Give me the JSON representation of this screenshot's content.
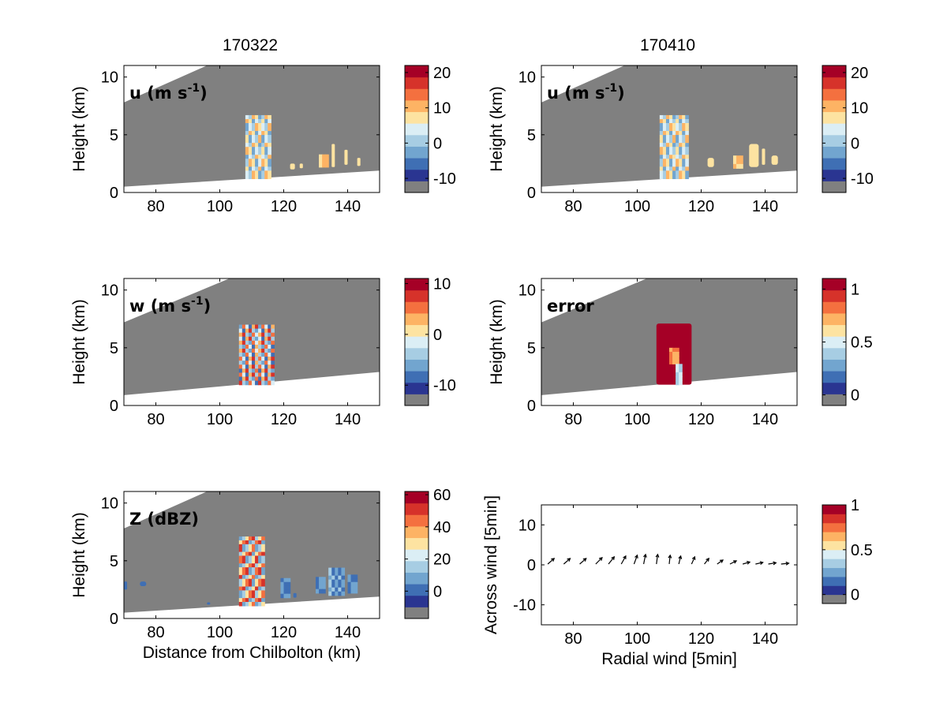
{
  "figure": {
    "column_titles": [
      "170322",
      "170410"
    ],
    "palette": [
      "#808080",
      "#2a3591",
      "#3f6fb4",
      "#72a5cf",
      "#a7cde3",
      "#dbeef5",
      "#fde3a1",
      "#fdb364",
      "#f4703f",
      "#d6322a",
      "#a50026"
    ]
  },
  "chart_data": [
    {
      "id": "u1",
      "type": "heatmap",
      "panel_label": "u (m s",
      "panel_label_sup": "-1",
      "panel_label_end": ")",
      "ylabel": "Height (km)",
      "xlabel": "",
      "xlim": [
        70,
        150
      ],
      "ylim": [
        0,
        11
      ],
      "xticks": [
        "80",
        "100",
        "120",
        "140"
      ],
      "yticks": [
        "0",
        "5",
        "10"
      ],
      "colorbar": {
        "range": [
          -14,
          22
        ],
        "ticks": [
          "20",
          "10",
          "0",
          "-10"
        ],
        "tick_values": [
          20,
          10,
          0,
          -10
        ]
      },
      "beam": {
        "lower": [
          [
            70,
            0.5
          ],
          [
            150,
            1.9
          ]
        ],
        "upper": [
          [
            70,
            7.8
          ],
          [
            96,
            11
          ]
        ]
      },
      "features": [
        {
          "x": [
            108,
            116
          ],
          "y": [
            1.2,
            6.7
          ],
          "colors": [
            "#dbeef5",
            "#a7cde3",
            "#fdb364",
            "#fde3a1",
            "#72a5cf"
          ]
        },
        {
          "x": [
            122,
            123.5
          ],
          "y": [
            2.0,
            2.5
          ],
          "colors": [
            "#fde3a1"
          ]
        },
        {
          "x": [
            125,
            126
          ],
          "y": [
            2.1,
            2.5
          ],
          "colors": [
            "#fde3a1"
          ]
        },
        {
          "x": [
            131,
            134
          ],
          "y": [
            2.2,
            3.3
          ],
          "colors": [
            "#fdb364",
            "#fde3a1"
          ]
        },
        {
          "x": [
            135,
            136
          ],
          "y": [
            2.2,
            4.2
          ],
          "colors": [
            "#fde3a1"
          ]
        },
        {
          "x": [
            139,
            140
          ],
          "y": [
            2.4,
            3.7
          ],
          "colors": [
            "#fde3a1"
          ]
        },
        {
          "x": [
            143,
            144
          ],
          "y": [
            2.3,
            3.0
          ],
          "colors": [
            "#fde3a1"
          ]
        }
      ]
    },
    {
      "id": "u2",
      "type": "heatmap",
      "panel_label": "u (m s",
      "panel_label_sup": "-1",
      "panel_label_end": ")",
      "ylabel": "Height (km)",
      "xlabel": "",
      "xlim": [
        70,
        150
      ],
      "ylim": [
        0,
        11
      ],
      "xticks": [
        "80",
        "100",
        "120",
        "140"
      ],
      "yticks": [
        "0",
        "5",
        "10"
      ],
      "colorbar": {
        "range": [
          -14,
          22
        ],
        "ticks": [
          "20",
          "10",
          "0",
          "-10"
        ],
        "tick_values": [
          20,
          10,
          0,
          -10
        ]
      },
      "beam": {
        "lower": [
          [
            70,
            0.5
          ],
          [
            150,
            1.9
          ]
        ],
        "upper": [
          [
            70,
            7.8
          ],
          [
            96,
            11
          ]
        ]
      },
      "features": [
        {
          "x": [
            107,
            116
          ],
          "y": [
            1.2,
            6.7
          ],
          "colors": [
            "#dbeef5",
            "#a7cde3",
            "#fdb364",
            "#fde3a1",
            "#72a5cf"
          ]
        },
        {
          "x": [
            122,
            124
          ],
          "y": [
            2.2,
            3.0
          ],
          "colors": [
            "#fde3a1"
          ]
        },
        {
          "x": [
            130,
            133
          ],
          "y": [
            2.1,
            3.2
          ],
          "colors": [
            "#fdb364",
            "#fde3a1"
          ]
        },
        {
          "x": [
            135,
            138
          ],
          "y": [
            2.2,
            4.2
          ],
          "colors": [
            "#fde3a1"
          ]
        },
        {
          "x": [
            139,
            140
          ],
          "y": [
            2.4,
            3.8
          ],
          "colors": [
            "#fde3a1"
          ]
        },
        {
          "x": [
            142,
            144
          ],
          "y": [
            2.4,
            3.2
          ],
          "colors": [
            "#fde3a1"
          ]
        }
      ]
    },
    {
      "id": "w",
      "type": "heatmap",
      "panel_label": "w (m s",
      "panel_label_sup": "-1",
      "panel_label_end": ")",
      "ylabel": "Height (km)",
      "xlabel": "",
      "xlim": [
        70,
        150
      ],
      "ylim": [
        0,
        11
      ],
      "xticks": [
        "80",
        "100",
        "120",
        "140"
      ],
      "yticks": [
        "0",
        "5",
        "10"
      ],
      "colorbar": {
        "range": [
          -14,
          11
        ],
        "ticks": [
          "10",
          "0",
          "-10"
        ],
        "tick_values": [
          10,
          0,
          -10
        ]
      },
      "beam": {
        "lower": [
          [
            70,
            0.9
          ],
          [
            150,
            2.9
          ]
        ],
        "upper": [
          [
            70,
            7.2
          ],
          [
            103,
            11
          ]
        ]
      },
      "features": [
        {
          "x": [
            106,
            117
          ],
          "y": [
            1.8,
            7.0
          ],
          "colors": [
            "#72a5cf",
            "#f4703f",
            "#dbeef5",
            "#3f6fb4",
            "#fdb364",
            "#d6322a",
            "#a7cde3"
          ]
        }
      ]
    },
    {
      "id": "error",
      "type": "heatmap",
      "panel_label": "error",
      "panel_label_sup": "",
      "panel_label_end": "",
      "ylabel": "Height (km)",
      "xlabel": "",
      "xlim": [
        70,
        150
      ],
      "ylim": [
        0,
        11
      ],
      "xticks": [
        "80",
        "100",
        "120",
        "140"
      ],
      "yticks": [
        "0",
        "5",
        "10"
      ],
      "colorbar": {
        "range": [
          -0.1,
          1.1
        ],
        "ticks": [
          "1",
          "0.5",
          "0"
        ],
        "tick_values": [
          1,
          0.5,
          0
        ]
      },
      "beam": {
        "lower": [
          [
            70,
            0.9
          ],
          [
            150,
            2.9
          ]
        ],
        "upper": [
          [
            70,
            7.2
          ],
          [
            103,
            11
          ]
        ]
      },
      "features": [
        {
          "x": [
            106,
            117
          ],
          "y": [
            1.8,
            7.1
          ],
          "colors": [
            "#a50026"
          ]
        },
        {
          "x": [
            110,
            113
          ],
          "y": [
            3.6,
            5.0
          ],
          "colors": [
            "#f4703f",
            "#fdb364"
          ]
        },
        {
          "x": [
            112,
            114
          ],
          "y": [
            1.8,
            3.6
          ],
          "colors": [
            "#a7cde3",
            "#dbeef5"
          ]
        }
      ]
    },
    {
      "id": "Z",
      "type": "heatmap",
      "panel_label": "Z (dBZ)",
      "panel_label_sup": "",
      "panel_label_end": "",
      "ylabel": "Height (km)",
      "xlabel": "Distance from Chilbolton (km)",
      "xlim": [
        70,
        150
      ],
      "ylim": [
        0,
        11
      ],
      "xticks": [
        "80",
        "100",
        "120",
        "140"
      ],
      "yticks": [
        "0",
        "5",
        "10"
      ],
      "colorbar": {
        "range": [
          -17,
          62
        ],
        "ticks": [
          "60",
          "40",
          "20",
          "0"
        ],
        "tick_values": [
          60,
          40,
          20,
          0
        ]
      },
      "beam": {
        "lower": [
          [
            70,
            0.5
          ],
          [
            150,
            1.9
          ]
        ],
        "upper": [
          [
            70,
            7.8
          ],
          [
            96,
            11
          ]
        ]
      },
      "features": [
        {
          "x": [
            106,
            114
          ],
          "y": [
            1.1,
            7.1
          ],
          "colors": [
            "#72a5cf",
            "#a7cde3",
            "#fde3a1",
            "#f4703f",
            "#d6322a"
          ]
        },
        {
          "x": [
            70,
            71
          ],
          "y": [
            2.5,
            3.2
          ],
          "colors": [
            "#3f6fb4"
          ]
        },
        {
          "x": [
            75,
            77
          ],
          "y": [
            2.8,
            3.2
          ],
          "colors": [
            "#3f6fb4"
          ]
        },
        {
          "x": [
            96,
            97
          ],
          "y": [
            1.2,
            1.4
          ],
          "colors": [
            "#3f6fb4"
          ]
        },
        {
          "x": [
            119,
            122
          ],
          "y": [
            1.8,
            3.5
          ],
          "colors": [
            "#3f6fb4",
            "#72a5cf"
          ]
        },
        {
          "x": [
            123,
            124
          ],
          "y": [
            1.8,
            2.2
          ],
          "colors": [
            "#3f6fb4"
          ]
        },
        {
          "x": [
            130,
            133
          ],
          "y": [
            2.2,
            3.6
          ],
          "colors": [
            "#3f6fb4",
            "#72a5cf"
          ]
        },
        {
          "x": [
            134,
            139
          ],
          "y": [
            2.0,
            4.4
          ],
          "colors": [
            "#3f6fb4",
            "#72a5cf",
            "#a7cde3"
          ]
        },
        {
          "x": [
            140,
            143
          ],
          "y": [
            2.2,
            3.8
          ],
          "colors": [
            "#3f6fb4",
            "#72a5cf"
          ]
        }
      ]
    },
    {
      "id": "wind",
      "type": "scatter",
      "ylabel": "Across wind [5min]",
      "xlabel": "Radial wind [5min]",
      "xlim": [
        70,
        150
      ],
      "ylim": [
        -15,
        15
      ],
      "xticks": [
        "80",
        "100",
        "120",
        "140"
      ],
      "yticks": [
        "-10",
        "0",
        "10"
      ],
      "colorbar": {
        "range": [
          -0.1,
          1.0
        ],
        "ticks": [
          "1",
          "0.5",
          "0"
        ],
        "tick_values": [
          1,
          0.5,
          0
        ]
      },
      "vectors": [
        {
          "x": 72,
          "y": 0.2,
          "dx": 2.0,
          "dy": 1.4
        },
        {
          "x": 77,
          "y": 0.2,
          "dx": 2.0,
          "dy": 1.4
        },
        {
          "x": 82,
          "y": 0.2,
          "dx": 2.0,
          "dy": 1.4
        },
        {
          "x": 87,
          "y": 0.2,
          "dx": 2.0,
          "dy": 1.6
        },
        {
          "x": 91,
          "y": 0.2,
          "dx": 1.8,
          "dy": 1.8
        },
        {
          "x": 95,
          "y": 0.2,
          "dx": 1.4,
          "dy": 2.0
        },
        {
          "x": 99,
          "y": 0.2,
          "dx": 1.0,
          "dy": 2.2
        },
        {
          "x": 102,
          "y": 0.2,
          "dx": 0.6,
          "dy": 2.4
        },
        {
          "x": 106,
          "y": 0.2,
          "dx": 0.4,
          "dy": 2.4
        },
        {
          "x": 110,
          "y": 0.2,
          "dx": 0.3,
          "dy": 2.2
        },
        {
          "x": 113,
          "y": 0.2,
          "dx": 0.6,
          "dy": 2.0
        },
        {
          "x": 117,
          "y": 0.2,
          "dx": 1.0,
          "dy": 1.8
        },
        {
          "x": 121,
          "y": 0.2,
          "dx": 1.4,
          "dy": 1.4
        },
        {
          "x": 125,
          "y": 0.2,
          "dx": 1.8,
          "dy": 1.0
        },
        {
          "x": 129,
          "y": 0.2,
          "dx": 2.0,
          "dy": 0.8
        },
        {
          "x": 133,
          "y": 0.2,
          "dx": 2.2,
          "dy": 0.5
        },
        {
          "x": 137,
          "y": 0.2,
          "dx": 2.3,
          "dy": 0.4
        },
        {
          "x": 141,
          "y": 0.2,
          "dx": 2.4,
          "dy": 0.3
        },
        {
          "x": 145,
          "y": 0.2,
          "dx": 2.4,
          "dy": 0.2
        }
      ]
    }
  ]
}
